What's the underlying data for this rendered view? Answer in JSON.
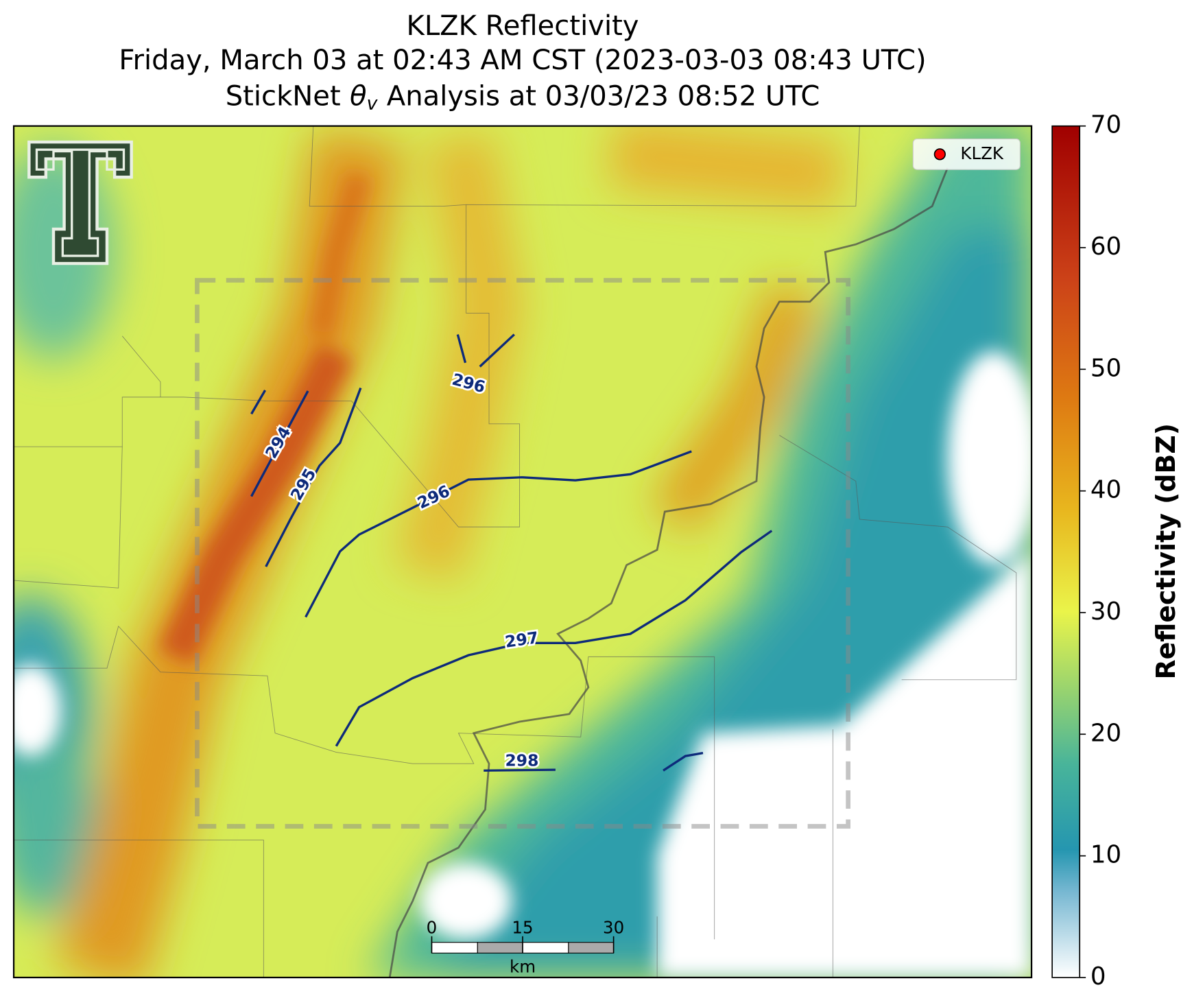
{
  "title": {
    "line1": "KLZK Reflectivity",
    "line2": "Friday, March 03 at 02:43 AM CST (2023-03-03 08:43 UTC)",
    "line3_prefix": "StickNet",
    "line3_symbol": "θ",
    "line3_subscript": "v",
    "line3_suffix": "Analysis at 03/03/23 08:52 UTC"
  },
  "legend": {
    "label": "KLZK",
    "color": "#ff0000"
  },
  "colorbar": {
    "label": "Reflectivity (dBZ)",
    "lim": [
      0,
      70
    ],
    "ticks": [
      0,
      10,
      20,
      30,
      40,
      50,
      60,
      70
    ]
  },
  "contours": [
    {
      "value": 294
    },
    {
      "value": 295
    },
    {
      "value": 296
    },
    {
      "value": 296
    },
    {
      "value": 297
    },
    {
      "value": 298
    }
  ],
  "scale_bar": {
    "ticks": [
      0,
      15,
      30
    ],
    "unit": "km"
  }
}
